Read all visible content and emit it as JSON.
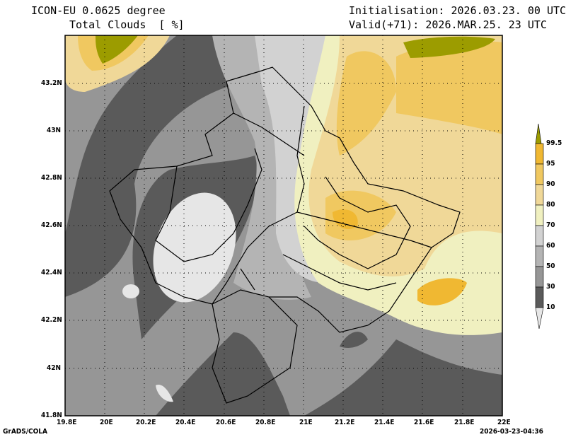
{
  "header": {
    "model": "ICON-EU 0.0625 degree",
    "variable": "Total Clouds  [ %]",
    "init": "Initialisation: 2026.03.23. 00 UTC",
    "valid": "Valid(+71): 2026.MAR.25. 23 UTC"
  },
  "axes": {
    "lat_labels": [
      "43.2N",
      "43N",
      "42.8N",
      "42.6N",
      "42.4N",
      "42.2N",
      "42N",
      "41.8N"
    ],
    "lon_labels": [
      "19.8E",
      "20E",
      "20.2E",
      "20.4E",
      "20.6E",
      "20.8E",
      "21E",
      "21.2E",
      "21.4E",
      "21.6E",
      "21.8E",
      "22E"
    ]
  },
  "legend": {
    "levels": [
      "99.5",
      "95",
      "90",
      "80",
      "70",
      "60",
      "50",
      "30",
      "10"
    ],
    "colors": {
      "above_99_5": "#9c9c00",
      "95_99_5": "#f0b832",
      "90_95": "#f0c860",
      "80_90": "#f0d898",
      "70_80": "#f0f0c0",
      "60_70": "#d2d2d2",
      "50_60": "#b4b4b4",
      "30_50": "#969696",
      "10_30": "#5a5a5a",
      "below_10": "#e6e6e6"
    }
  },
  "footer": {
    "software": "GrADS/COLA",
    "timestamp": "2026-03-23-04:36"
  }
}
